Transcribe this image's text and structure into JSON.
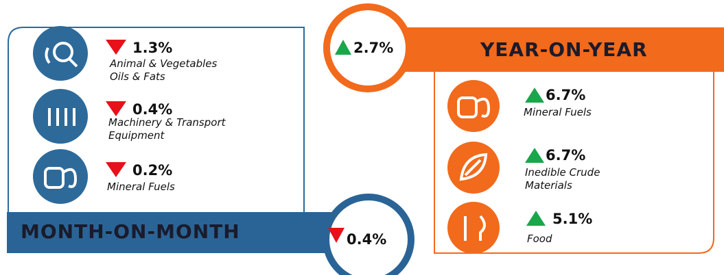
{
  "month_on_month": {
    "title": "MONTH-ON-MONTH",
    "value": "0.4%",
    "items": [
      {
        "value": "1.3%",
        "label_lines": [
          "Animal & Vegetables",
          "Oils & Fats"
        ]
      },
      {
        "value": "0.4%",
        "label_lines": [
          "Machinery & Transport",
          "Equipment"
        ]
      },
      {
        "value": "0.2%",
        "label_lines": [
          "Mineral Fuels"
        ]
      }
    ]
  },
  "year_on_year": {
    "title": "YEAR-ON-YEAR",
    "value": "2.7%",
    "items": [
      {
        "value": "6.7%",
        "label_lines": [
          "Mineral Fuels"
        ]
      },
      {
        "value": "6.7%",
        "label_lines": [
          "Inedible Crude",
          "Materials"
        ]
      },
      {
        "value": "5.1%",
        "label_lines": [
          "Food"
        ]
      }
    ]
  }
}
